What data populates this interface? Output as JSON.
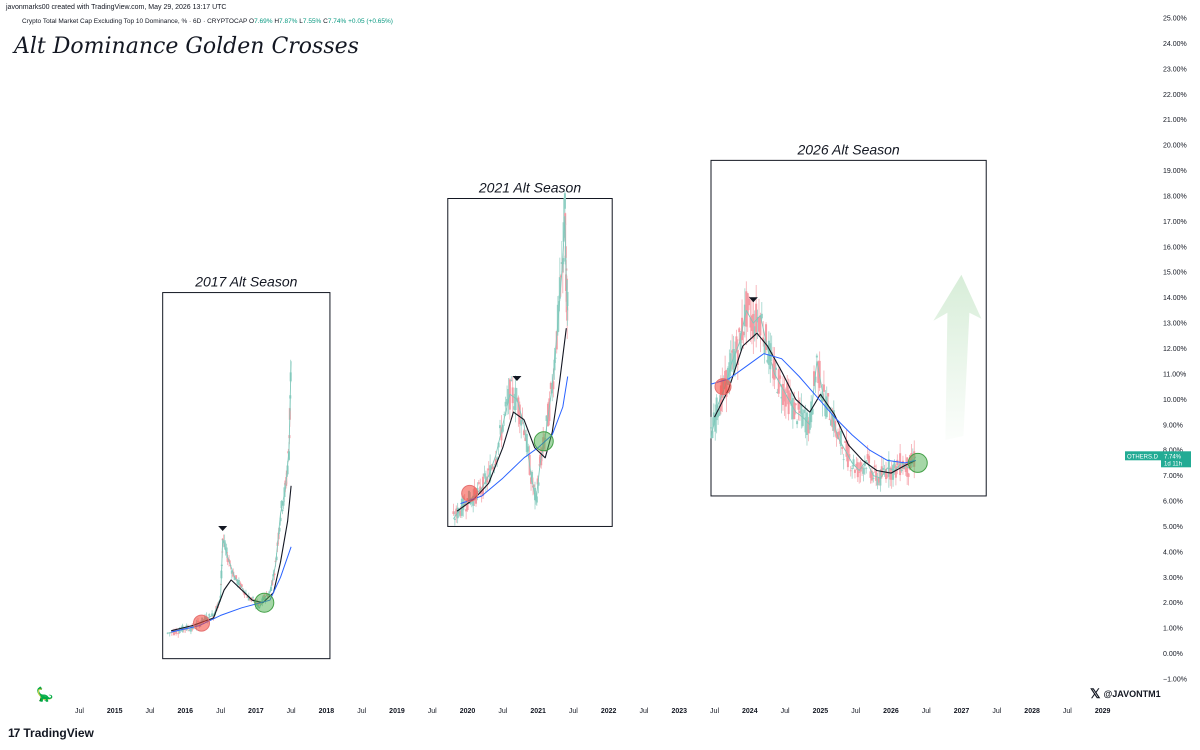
{
  "header": {
    "credit": "javonmarks00 created with TradingView.com, May 29, 2026 13:17 UTC",
    "symbol_desc": "Crypto Total Market Cap Excluding Top 10 Dominance, % · 6D · CRYPTOCAP",
    "ohlc": {
      "o_label": "O",
      "o": "7.69%",
      "h_label": "H",
      "h": "7.87%",
      "l_label": "L",
      "l": "7.55%",
      "c_label": "C",
      "c": "7.74%",
      "change": "+0.05 (+0.65%)"
    }
  },
  "title": "Alt Dominance Golden Crosses",
  "footer": {
    "brand": "TradingView",
    "brand_logo": "17",
    "handle": "@JAVONTM1",
    "x_icon": "𝕏",
    "dino_icon": "dinosaur-icon"
  },
  "price_tag": {
    "symbol": "OTHERS.D",
    "value": "7.74%",
    "countdown": "1d 11h"
  },
  "colors": {
    "up": "#089981",
    "down": "#f23645",
    "sma_fast": "#131722",
    "sma_slow": "#2962ff",
    "green_circle": "#4caf50",
    "red_circle": "#f44336",
    "tag_bg": "#22ab94"
  },
  "chart_data": {
    "type": "line",
    "title": "Alt Dominance Golden Crosses",
    "ylabel": "",
    "xlabel": "",
    "ylim": [
      -1,
      25
    ],
    "xlim": [
      2014.65,
      2029.6
    ],
    "y_ticks": [
      "25.00%",
      "24.00%",
      "23.00%",
      "22.00%",
      "21.00%",
      "20.00%",
      "19.00%",
      "18.00%",
      "17.00%",
      "16.00%",
      "15.00%",
      "14.00%",
      "13.00%",
      "12.00%",
      "11.00%",
      "10.00%",
      "9.00%",
      "8.00%",
      "7.00%",
      "6.00%",
      "5.00%",
      "4.00%",
      "3.00%",
      "2.00%",
      "1.00%",
      "0.00%",
      "−1.00%"
    ],
    "x_ticks": [
      {
        "label": "Jul",
        "x": 2014.5
      },
      {
        "label": "2015",
        "x": 2015,
        "year": true
      },
      {
        "label": "Jul",
        "x": 2015.5
      },
      {
        "label": "2016",
        "x": 2016,
        "year": true
      },
      {
        "label": "Jul",
        "x": 2016.5
      },
      {
        "label": "2017",
        "x": 2017,
        "year": true
      },
      {
        "label": "Jul",
        "x": 2017.5
      },
      {
        "label": "2018",
        "x": 2018,
        "year": true
      },
      {
        "label": "Jul",
        "x": 2018.5
      },
      {
        "label": "2019",
        "x": 2019,
        "year": true
      },
      {
        "label": "Jul",
        "x": 2019.5
      },
      {
        "label": "2020",
        "x": 2020,
        "year": true
      },
      {
        "label": "Jul",
        "x": 2020.5
      },
      {
        "label": "2021",
        "x": 2021,
        "year": true
      },
      {
        "label": "Jul",
        "x": 2021.5
      },
      {
        "label": "2022",
        "x": 2022,
        "year": true
      },
      {
        "label": "Jul",
        "x": 2022.5
      },
      {
        "label": "2023",
        "x": 2023,
        "year": true
      },
      {
        "label": "Jul",
        "x": 2023.5
      },
      {
        "label": "2024",
        "x": 2024,
        "year": true
      },
      {
        "label": "Jul",
        "x": 2024.5
      },
      {
        "label": "2025",
        "x": 2025,
        "year": true
      },
      {
        "label": "Jul",
        "x": 2025.5
      },
      {
        "label": "2026",
        "x": 2026,
        "year": true
      },
      {
        "label": "Jul",
        "x": 2026.5
      },
      {
        "label": "2027",
        "x": 2027,
        "year": true
      },
      {
        "label": "Jul",
        "x": 2027.5
      },
      {
        "label": "2028",
        "x": 2028,
        "year": true
      },
      {
        "label": "Jul",
        "x": 2028.5
      },
      {
        "label": "2029",
        "x": 2029,
        "year": true
      }
    ],
    "series": [
      {
        "kind": "price",
        "segments": [
          [
            [
              2015.75,
              0.8
            ],
            [
              2015.9,
              0.9
            ],
            [
              2016.0,
              1.0
            ],
            [
              2016.1,
              1.0
            ],
            [
              2016.2,
              1.2
            ],
            [
              2016.3,
              1.4
            ],
            [
              2016.4,
              1.5
            ],
            [
              2016.5,
              2.2
            ],
            [
              2016.53,
              4.5
            ],
            [
              2016.6,
              3.8
            ],
            [
              2016.7,
              3.0
            ],
            [
              2016.8,
              2.6
            ],
            [
              2016.9,
              2.2
            ],
            [
              2017.0,
              2.0
            ],
            [
              2017.05,
              1.8
            ],
            [
              2017.12,
              2.2
            ],
            [
              2017.2,
              2.4
            ],
            [
              2017.28,
              3.5
            ],
            [
              2017.35,
              5.5
            ],
            [
              2017.42,
              6.5
            ],
            [
              2017.47,
              8.0
            ],
            [
              2017.5,
              11.5
            ]
          ],
          [
            [
              2019.8,
              5.3
            ],
            [
              2019.9,
              5.7
            ],
            [
              2020.0,
              6.0
            ],
            [
              2020.1,
              6.2
            ],
            [
              2020.2,
              6.5
            ],
            [
              2020.3,
              7.0
            ],
            [
              2020.4,
              7.8
            ],
            [
              2020.5,
              9.0
            ],
            [
              2020.6,
              10.2
            ],
            [
              2020.7,
              10.0
            ],
            [
              2020.8,
              9.0
            ],
            [
              2020.9,
              7.0
            ],
            [
              2020.97,
              6.0
            ],
            [
              2021.03,
              7.5
            ],
            [
              2021.1,
              8.5
            ],
            [
              2021.2,
              10.5
            ],
            [
              2021.28,
              13.0
            ],
            [
              2021.35,
              15.5
            ],
            [
              2021.38,
              17.2
            ],
            [
              2021.4,
              14.5
            ],
            [
              2021.42,
              13.5
            ]
          ],
          [
            [
              2023.45,
              8.5
            ],
            [
              2023.55,
              9.8
            ],
            [
              2023.65,
              10.5
            ],
            [
              2023.75,
              11.5
            ],
            [
              2023.85,
              12.2
            ],
            [
              2023.95,
              13.5
            ],
            [
              2024.05,
              13.0
            ],
            [
              2024.15,
              13.3
            ],
            [
              2024.25,
              12.0
            ],
            [
              2024.35,
              11.0
            ],
            [
              2024.45,
              10.5
            ],
            [
              2024.55,
              10.0
            ],
            [
              2024.65,
              9.5
            ],
            [
              2024.75,
              9.3
            ],
            [
              2024.85,
              9.0
            ],
            [
              2024.95,
              11.5
            ],
            [
              2025.05,
              10.0
            ],
            [
              2025.15,
              9.5
            ],
            [
              2025.25,
              8.5
            ],
            [
              2025.35,
              8.0
            ],
            [
              2025.45,
              7.5
            ],
            [
              2025.55,
              7.2
            ],
            [
              2025.65,
              7.6
            ],
            [
              2025.75,
              7.0
            ],
            [
              2025.85,
              6.9
            ],
            [
              2025.95,
              7.3
            ],
            [
              2026.05,
              7.2
            ],
            [
              2026.15,
              7.5
            ],
            [
              2026.25,
              7.3
            ],
            [
              2026.35,
              7.74
            ]
          ]
        ]
      },
      {
        "kind": "sma_fast",
        "segments": [
          [
            [
              2015.8,
              0.9
            ],
            [
              2016.1,
              1.1
            ],
            [
              2016.4,
              1.4
            ],
            [
              2016.55,
              2.5
            ],
            [
              2016.65,
              2.9
            ],
            [
              2016.8,
              2.5
            ],
            [
              2016.95,
              2.1
            ],
            [
              2017.1,
              2.0
            ],
            [
              2017.25,
              2.4
            ],
            [
              2017.35,
              3.6
            ],
            [
              2017.45,
              5.2
            ],
            [
              2017.5,
              6.6
            ]
          ],
          [
            [
              2019.85,
              5.6
            ],
            [
              2020.1,
              6.1
            ],
            [
              2020.3,
              6.7
            ],
            [
              2020.5,
              8.1
            ],
            [
              2020.65,
              9.5
            ],
            [
              2020.8,
              9.2
            ],
            [
              2020.95,
              8.1
            ],
            [
              2021.1,
              7.7
            ],
            [
              2021.2,
              8.7
            ],
            [
              2021.3,
              10.6
            ],
            [
              2021.4,
              12.8
            ]
          ],
          [
            [
              2023.5,
              9.3
            ],
            [
              2023.7,
              10.4
            ],
            [
              2023.9,
              12.1
            ],
            [
              2024.1,
              12.6
            ],
            [
              2024.25,
              12.1
            ],
            [
              2024.45,
              11.1
            ],
            [
              2024.65,
              10.0
            ],
            [
              2024.85,
              9.5
            ],
            [
              2025.0,
              10.2
            ],
            [
              2025.2,
              9.4
            ],
            [
              2025.4,
              8.2
            ],
            [
              2025.6,
              7.6
            ],
            [
              2025.8,
              7.2
            ],
            [
              2026.0,
              7.1
            ],
            [
              2026.2,
              7.4
            ],
            [
              2026.35,
              7.6
            ]
          ]
        ]
      },
      {
        "kind": "sma_slow",
        "segments": [
          [
            [
              2015.8,
              0.85
            ],
            [
              2016.2,
              1.1
            ],
            [
              2016.5,
              1.5
            ],
            [
              2016.8,
              1.8
            ],
            [
              2017.0,
              1.95
            ],
            [
              2017.2,
              2.1
            ],
            [
              2017.35,
              3.0
            ],
            [
              2017.5,
              4.2
            ]
          ],
          [
            [
              2019.9,
              5.9
            ],
            [
              2020.2,
              6.2
            ],
            [
              2020.5,
              6.9
            ],
            [
              2020.8,
              7.7
            ],
            [
              2021.0,
              8.1
            ],
            [
              2021.2,
              8.6
            ],
            [
              2021.35,
              9.7
            ],
            [
              2021.42,
              10.9
            ]
          ],
          [
            [
              2023.45,
              10.6
            ],
            [
              2023.7,
              10.8
            ],
            [
              2023.95,
              11.3
            ],
            [
              2024.2,
              11.8
            ],
            [
              2024.45,
              11.6
            ],
            [
              2024.7,
              10.9
            ],
            [
              2024.95,
              10.1
            ],
            [
              2025.2,
              9.3
            ],
            [
              2025.45,
              8.6
            ],
            [
              2025.7,
              8.0
            ],
            [
              2025.95,
              7.6
            ],
            [
              2026.2,
              7.5
            ],
            [
              2026.35,
              7.6
            ]
          ]
        ]
      }
    ],
    "annotations": {
      "boxes": [
        {
          "label": "2017 Alt Season",
          "x0": 2015.68,
          "x1": 2018.05,
          "y0": -0.2,
          "y1": 14.2
        },
        {
          "label": "2021 Alt Season",
          "x0": 2019.72,
          "x1": 2022.05,
          "y0": 5.0,
          "y1": 17.9
        },
        {
          "label": "2026 Alt Season",
          "x0": 2023.45,
          "x1": 2027.35,
          "y0": 6.2,
          "y1": 19.4
        }
      ],
      "red_circles": [
        [
          2016.23,
          1.2
        ],
        [
          2020.03,
          6.3
        ],
        [
          2023.62,
          10.5
        ]
      ],
      "green_circles": [
        [
          2017.12,
          2.0
        ],
        [
          2021.08,
          8.35
        ],
        [
          2026.38,
          7.5
        ]
      ],
      "peak_markers": [
        [
          2016.53,
          4.9
        ],
        [
          2020.7,
          10.8
        ],
        [
          2024.05,
          13.9
        ]
      ],
      "projection_arrow": {
        "x_tip": 2026.97,
        "y_tip": 14.9,
        "x_base": 2026.97,
        "y_base": 8.4
      }
    }
  }
}
